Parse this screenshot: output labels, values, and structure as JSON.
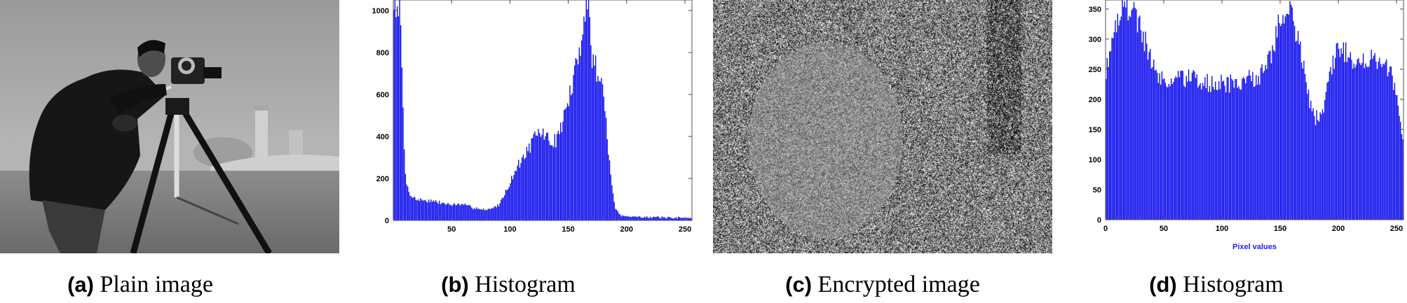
{
  "panels": {
    "a": {
      "tag": "(a)",
      "caption": "Plain image"
    },
    "b": {
      "tag": "(b)",
      "caption": "Histogram"
    },
    "c": {
      "tag": "(c)",
      "caption": "Encrypted image"
    },
    "d": {
      "tag": "(d)",
      "caption": "Histogram"
    }
  },
  "chart_data": [
    {
      "id": "b",
      "type": "bar",
      "title": "",
      "xlabel": "",
      "ylabel": "",
      "xlim": [
        0,
        256
      ],
      "ylim": [
        0,
        1050
      ],
      "xticks": [
        50,
        100,
        150,
        200,
        250
      ],
      "yticks": [
        0,
        200,
        400,
        600,
        800,
        1000
      ],
      "color": "#1010ee",
      "profile": [
        [
          0,
          1050
        ],
        [
          3,
          1050
        ],
        [
          6,
          1050
        ],
        [
          8,
          600
        ],
        [
          10,
          250
        ],
        [
          12,
          160
        ],
        [
          15,
          120
        ],
        [
          20,
          100
        ],
        [
          30,
          95
        ],
        [
          40,
          85
        ],
        [
          50,
          75
        ],
        [
          60,
          75
        ],
        [
          70,
          60
        ],
        [
          80,
          50
        ],
        [
          90,
          70
        ],
        [
          95,
          120
        ],
        [
          100,
          180
        ],
        [
          105,
          240
        ],
        [
          110,
          290
        ],
        [
          115,
          330
        ],
        [
          120,
          380
        ],
        [
          125,
          420
        ],
        [
          130,
          410
        ],
        [
          135,
          370
        ],
        [
          140,
          380
        ],
        [
          145,
          470
        ],
        [
          150,
          560
        ],
        [
          155,
          680
        ],
        [
          160,
          800
        ],
        [
          163,
          1000
        ],
        [
          165,
          1050
        ],
        [
          168,
          1000
        ],
        [
          170,
          780
        ],
        [
          175,
          720
        ],
        [
          180,
          640
        ],
        [
          183,
          420
        ],
        [
          186,
          240
        ],
        [
          190,
          60
        ],
        [
          195,
          25
        ],
        [
          200,
          20
        ],
        [
          210,
          18
        ],
        [
          220,
          15
        ],
        [
          230,
          15
        ],
        [
          240,
          12
        ],
        [
          250,
          15
        ],
        [
          255,
          10
        ]
      ]
    },
    {
      "id": "d",
      "type": "bar",
      "title": "",
      "xlabel": "Pixel values",
      "ylabel": "",
      "xlim": [
        0,
        256
      ],
      "ylim": [
        0,
        365
      ],
      "xticks": [
        0,
        50,
        100,
        150,
        200,
        250
      ],
      "yticks": [
        0,
        50,
        100,
        150,
        200,
        250,
        300,
        350
      ],
      "color": "#1010ee",
      "profile": [
        [
          0,
          240
        ],
        [
          3,
          275
        ],
        [
          6,
          310
        ],
        [
          10,
          335
        ],
        [
          15,
          350
        ],
        [
          20,
          355
        ],
        [
          25,
          340
        ],
        [
          30,
          320
        ],
        [
          35,
          290
        ],
        [
          40,
          265
        ],
        [
          45,
          235
        ],
        [
          50,
          230
        ],
        [
          60,
          235
        ],
        [
          70,
          235
        ],
        [
          80,
          230
        ],
        [
          90,
          225
        ],
        [
          100,
          225
        ],
        [
          110,
          225
        ],
        [
          120,
          230
        ],
        [
          130,
          235
        ],
        [
          140,
          265
        ],
        [
          145,
          290
        ],
        [
          150,
          330
        ],
        [
          155,
          350
        ],
        [
          160,
          345
        ],
        [
          165,
          305
        ],
        [
          170,
          255
        ],
        [
          175,
          200
        ],
        [
          180,
          170
        ],
        [
          185,
          170
        ],
        [
          190,
          205
        ],
        [
          195,
          260
        ],
        [
          200,
          280
        ],
        [
          205,
          285
        ],
        [
          210,
          270
        ],
        [
          215,
          265
        ],
        [
          220,
          270
        ],
        [
          230,
          265
        ],
        [
          240,
          260
        ],
        [
          245,
          245
        ],
        [
          250,
          210
        ],
        [
          253,
          170
        ],
        [
          255,
          140
        ]
      ]
    }
  ]
}
